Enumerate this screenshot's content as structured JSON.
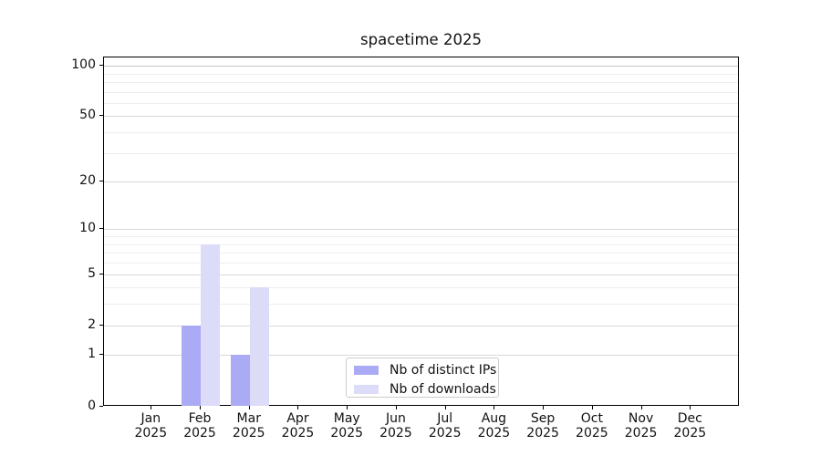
{
  "title": "spacetime 2025",
  "chart_data": {
    "type": "bar",
    "title": "spacetime 2025",
    "categories": [
      "Jan 2025",
      "Feb 2025",
      "Mar 2025",
      "Apr 2025",
      "May 2025",
      "Jun 2025",
      "Jul 2025",
      "Aug 2025",
      "Sep 2025",
      "Oct 2025",
      "Nov 2025",
      "Dec 2025"
    ],
    "series": [
      {
        "name": "Nb of distinct IPs",
        "color": "#aaaaf5",
        "values": [
          0,
          2,
          1,
          0,
          0,
          0,
          0,
          0,
          0,
          0,
          0,
          0
        ]
      },
      {
        "name": "Nb of downloads",
        "color": "#dcdcf8",
        "values": [
          0,
          8,
          4,
          0,
          0,
          0,
          0,
          0,
          0,
          0,
          0,
          0
        ]
      }
    ],
    "xlabel": "",
    "ylabel": "",
    "yscale": "log1p",
    "ylim": [
      0,
      112
    ],
    "y_major_ticks": [
      0,
      1,
      2,
      5,
      10,
      20,
      50,
      100
    ],
    "y_minor_gridlines": [
      3,
      4,
      6,
      7,
      8,
      9,
      30,
      40,
      60,
      70,
      80,
      90
    ],
    "grid": "horizontal",
    "legend_position": "bottom-center-inside"
  },
  "colors": {
    "series_ips": "#aaaaf5",
    "series_downloads": "#dcdcf8",
    "grid_major": "#d8d8d8",
    "grid_minor": "#eeeeee",
    "axis": "#000000",
    "text": "#111111",
    "legend_border": "#cccccc",
    "background": "#ffffff"
  }
}
